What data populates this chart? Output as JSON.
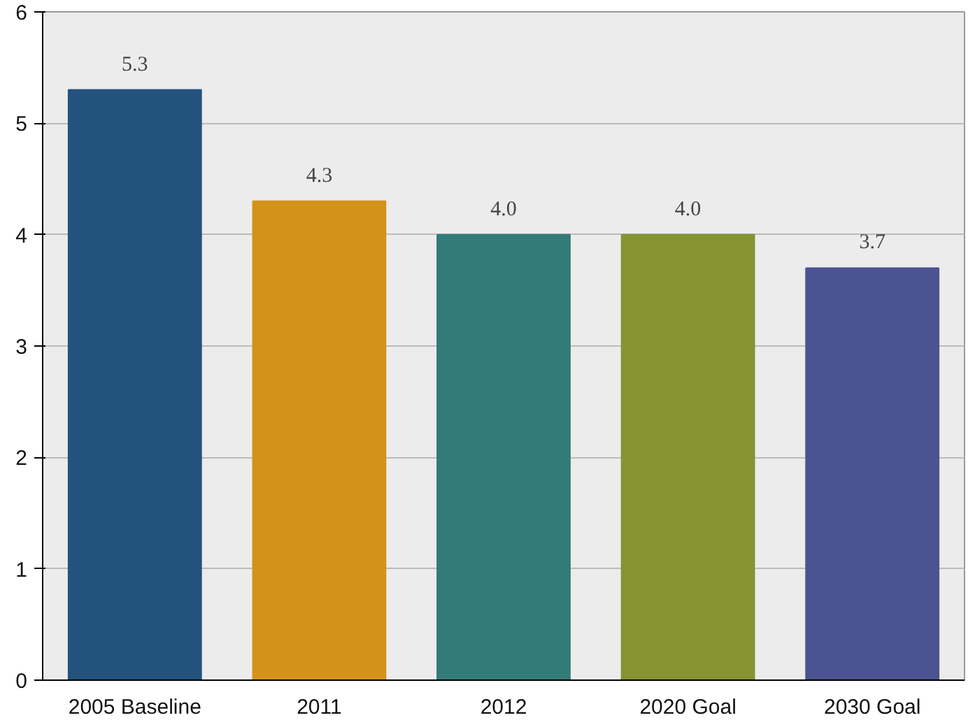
{
  "chart_data": {
    "type": "bar",
    "categories": [
      "2005 Baseline",
      "2011",
      "2012",
      "2020 Goal",
      "2030 Goal"
    ],
    "values": [
      5.3,
      4.3,
      4.0,
      4.0,
      3.7
    ],
    "colors": [
      "#23527f",
      "#d4921a",
      "#337b78",
      "#869432",
      "#4b5490"
    ],
    "value_labels": [
      "5.3",
      "4.3",
      "4.0",
      "4.0",
      "3.7"
    ],
    "ylim": [
      0,
      6
    ],
    "yticks": [
      0,
      1,
      2,
      3,
      4,
      5,
      6
    ],
    "grid": "y"
  }
}
